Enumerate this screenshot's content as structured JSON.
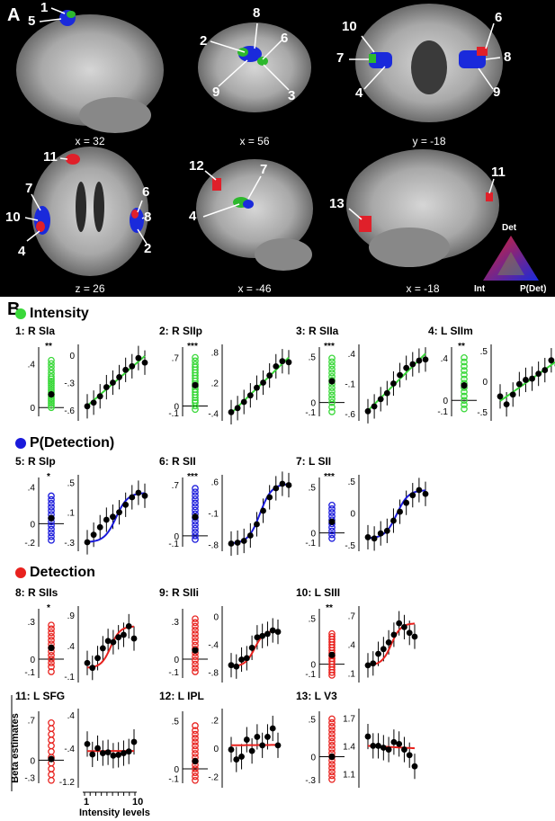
{
  "panel_labels": {
    "a": "A",
    "b": "B"
  },
  "slices": [
    {
      "caption": "x = 32"
    },
    {
      "caption": "x = 56"
    },
    {
      "caption": "y = -18"
    },
    {
      "caption": "z = 26"
    },
    {
      "caption": "x = -46"
    },
    {
      "caption": "x = -18"
    }
  ],
  "region_numbers": [
    "1",
    "5",
    "8",
    "2",
    "6",
    "9",
    "3",
    "10",
    "7",
    "4",
    "6",
    "8",
    "9",
    "11",
    "7",
    "10",
    "4",
    "6",
    "8",
    "2",
    "12",
    "7",
    "4",
    "13",
    "11"
  ],
  "triangle_legend": {
    "top": "Det",
    "left": "Int",
    "right": "P(Det)",
    "colors": {
      "top": "#e0202a",
      "left": "#2db82d",
      "right": "#1a2adb"
    }
  },
  "sections": [
    {
      "title": "Intensity",
      "color": "#39d839"
    },
    {
      "title": "P(Detection)",
      "color": "#1a1adb"
    },
    {
      "title": "Detection",
      "color": "#e8221e"
    }
  ],
  "shared": {
    "ylabel": "Beta estimates",
    "xlabel": "Intensity levels",
    "xtick_min": "1",
    "xtick_max": "10"
  },
  "chart_data": [
    {
      "type": "scatter",
      "title": "1: R SIa",
      "color": "#39d839",
      "stars": "**",
      "left_ticks": [
        ".4",
        "0"
      ],
      "left_lim": [
        -0.08,
        0.55
      ],
      "left_ylim_note": "",
      "right_ticks": [
        "0",
        "-.3",
        "-.6"
      ],
      "right_lim": [
        -0.72,
        0.12
      ],
      "fit": "linear",
      "values": [
        -0.56,
        -0.52,
        -0.45,
        -0.35,
        -0.3,
        -0.24,
        -0.16,
        -0.12,
        -0.03,
        -0.08
      ],
      "subjects": [
        0.02,
        0.04,
        0.06,
        0.08,
        0.1,
        0.12,
        0.14,
        0.16,
        0.18,
        0.2,
        0.22,
        0.24,
        0.26,
        0.28,
        0.31,
        0.34,
        0.37,
        0.4,
        0.43,
        0.0
      ],
      "mean": 0.12
    },
    {
      "type": "scatter",
      "title": "2: R SIIp",
      "color": "#39d839",
      "stars": "***",
      "left_ticks": [
        ".7",
        "0",
        "-.1"
      ],
      "left_lim": [
        -0.15,
        0.85
      ],
      "right_ticks": [
        ".8",
        ".2",
        "-.4"
      ],
      "right_lim": [
        -0.55,
        0.95
      ],
      "fit": "linear",
      "values": [
        -0.38,
        -0.3,
        -0.18,
        -0.05,
        0.1,
        0.2,
        0.34,
        0.52,
        0.62,
        0.6
      ],
      "subjects": [
        -0.05,
        0.0,
        0.05,
        0.08,
        0.12,
        0.16,
        0.2,
        0.24,
        0.28,
        0.32,
        0.36,
        0.4,
        0.44,
        0.48,
        0.52,
        0.56,
        0.6,
        0.65,
        0.7
      ],
      "mean": 0.3
    },
    {
      "type": "scatter",
      "title": "3: R SIIa",
      "color": "#39d839",
      "stars": "***",
      "left_ticks": [
        ".5",
        "0",
        "-.1"
      ],
      "left_lim": [
        -0.15,
        0.6
      ],
      "right_ticks": [
        ".4",
        "-.1",
        "-.6"
      ],
      "right_lim": [
        -0.72,
        0.55
      ],
      "fit": "linear",
      "values": [
        -0.56,
        -0.48,
        -0.36,
        -0.26,
        -0.1,
        0.04,
        0.16,
        0.22,
        0.28,
        0.3
      ],
      "subjects": [
        -0.1,
        -0.05,
        0.0,
        0.04,
        0.08,
        0.12,
        0.16,
        0.2,
        0.24,
        0.28,
        0.32,
        0.36,
        0.4,
        0.44,
        0.48
      ],
      "mean": 0.23
    },
    {
      "type": "scatter",
      "title": "4: L SIIm",
      "color": "#39d839",
      "stars": "**",
      "left_ticks": [
        ".4",
        "0",
        "-.1"
      ],
      "left_lim": [
        -0.15,
        0.5
      ],
      "right_ticks": [
        ".5",
        "0",
        "-.5"
      ],
      "right_lim": [
        -0.65,
        0.6
      ],
      "fit": "linear",
      "values": [
        -0.25,
        -0.38,
        -0.22,
        -0.05,
        0.02,
        0.04,
        0.12,
        0.18,
        0.34,
        0.26
      ],
      "subjects": [
        -0.08,
        -0.04,
        0.0,
        0.04,
        0.08,
        0.12,
        0.16,
        0.2,
        0.24,
        0.28,
        0.32,
        0.36,
        0.4
      ],
      "mean": 0.14
    },
    {
      "type": "scatter",
      "title": "5: R SIp",
      "color": "#1a1adb",
      "stars": "*",
      "left_ticks": [
        ".4",
        "0",
        "-.2"
      ],
      "left_lim": [
        -0.25,
        0.5
      ],
      "right_ticks": [
        ".5",
        ".1",
        "-.3"
      ],
      "right_lim": [
        -0.42,
        0.6
      ],
      "fit": "sigmoid",
      "values": [
        -0.3,
        -0.2,
        -0.1,
        0.0,
        0.04,
        0.1,
        0.2,
        0.3,
        0.36,
        0.32
      ],
      "subjects": [
        -0.18,
        -0.14,
        -0.1,
        -0.06,
        -0.02,
        0.02,
        0.06,
        0.1,
        0.14,
        0.18,
        0.22,
        0.26,
        0.3
      ],
      "mean": 0.06
    },
    {
      "type": "scatter",
      "title": "6: R SII",
      "color": "#1a1adb",
      "stars": "***",
      "left_ticks": [
        ".7",
        "0",
        "-.1"
      ],
      "left_lim": [
        -0.15,
        0.8
      ],
      "right_ticks": [
        ".6",
        "-.1",
        "-.8"
      ],
      "right_lim": [
        -0.95,
        0.75
      ],
      "fit": "sigmoid",
      "values": [
        -0.78,
        -0.76,
        -0.72,
        -0.6,
        -0.35,
        -0.05,
        0.25,
        0.45,
        0.55,
        0.52
      ],
      "subjects": [
        -0.05,
        0.0,
        0.05,
        0.1,
        0.15,
        0.2,
        0.25,
        0.3,
        0.35,
        0.4,
        0.45,
        0.5,
        0.55,
        0.6,
        0.65
      ],
      "mean": 0.26
    },
    {
      "type": "scatter",
      "title": "7: L SII",
      "color": "#1a1adb",
      "stars": "***",
      "left_ticks": [
        ".5",
        "0",
        "-.1"
      ],
      "left_lim": [
        -0.15,
        0.6
      ],
      "right_ticks": [
        ".5",
        "0",
        "-.5"
      ],
      "right_lim": [
        -0.6,
        0.6
      ],
      "fit": "sigmoid",
      "values": [
        -0.38,
        -0.4,
        -0.32,
        -0.28,
        -0.12,
        0.02,
        0.16,
        0.28,
        0.36,
        0.3
      ],
      "subjects": [
        -0.06,
        -0.02,
        0.02,
        0.06,
        0.1,
        0.14,
        0.18,
        0.22,
        0.26,
        0.3
      ],
      "mean": 0.12
    },
    {
      "type": "scatter",
      "title": "8: R SIIs",
      "color": "#e8221e",
      "stars": "*",
      "left_ticks": [
        ".3",
        "0",
        "-.1"
      ],
      "left_lim": [
        -0.15,
        0.4
      ],
      "right_ticks": [
        ".9",
        ".4",
        "-.1"
      ],
      "right_lim": [
        -0.2,
        1.05
      ],
      "fit": "sigmoid",
      "values": [
        0.12,
        0.04,
        0.2,
        0.36,
        0.48,
        0.46,
        0.54,
        0.58,
        0.72,
        0.52
      ],
      "subjects": [
        -0.1,
        -0.06,
        -0.03,
        0.0,
        0.03,
        0.06,
        0.09,
        0.12,
        0.15,
        0.18,
        0.21,
        0.24,
        0.27
      ],
      "mean": 0.09
    },
    {
      "type": "scatter",
      "title": "9: R SIIi",
      "color": "#e8221e",
      "stars": "",
      "left_ticks": [
        ".3",
        "0",
        "-.1"
      ],
      "left_lim": [
        -0.15,
        0.4
      ],
      "right_ticks": [
        "0",
        "-.4",
        "-.8"
      ],
      "right_lim": [
        -0.95,
        0.15
      ],
      "fit": "sigmoid",
      "values": [
        -0.7,
        -0.72,
        -0.62,
        -0.6,
        -0.45,
        -0.3,
        -0.28,
        -0.25,
        -0.2,
        -0.22
      ],
      "subjects": [
        -0.1,
        -0.07,
        -0.04,
        -0.01,
        0.02,
        0.05,
        0.08,
        0.11,
        0.14,
        0.17,
        0.2,
        0.23,
        0.26,
        0.29,
        0.32
      ],
      "mean": 0.07
    },
    {
      "type": "scatter",
      "title": "10: L SIII",
      "color": "#e8221e",
      "stars": "**",
      "left_ticks": [
        ".5",
        "0",
        "-.1"
      ],
      "left_lim": [
        -0.15,
        0.6
      ],
      "right_ticks": [
        ".7",
        ".4",
        ".1"
      ],
      "right_lim": [
        0.0,
        0.8
      ],
      "fit": "sigmoid",
      "values": [
        0.18,
        0.2,
        0.3,
        0.35,
        0.42,
        0.5,
        0.62,
        0.58,
        0.52,
        0.48
      ],
      "subjects": [
        -0.12,
        -0.09,
        -0.06,
        -0.03,
        0.0,
        0.03,
        0.06,
        0.09,
        0.12,
        0.15,
        0.18,
        0.21,
        0.24,
        0.27,
        0.3,
        0.33
      ],
      "mean": 0.1
    },
    {
      "type": "scatter",
      "title": "11: L SFG",
      "color": "#e8221e",
      "stars": "",
      "left_ticks": [
        ".7",
        "0",
        "-.3"
      ],
      "left_lim": [
        -0.4,
        0.85
      ],
      "right_ticks": [
        ".4",
        "-.4",
        "-1.2"
      ],
      "right_lim": [
        -1.35,
        0.55
      ],
      "fit": "flat",
      "values": [
        -0.3,
        -0.55,
        -0.4,
        -0.52,
        -0.5,
        -0.58,
        -0.56,
        -0.52,
        -0.48,
        -0.25
      ],
      "subjects": [
        -0.35,
        -0.25,
        -0.15,
        -0.05,
        0.05,
        0.15,
        0.25,
        0.35,
        0.45,
        0.55,
        0.65
      ],
      "mean": 0.02
    },
    {
      "type": "scatter",
      "title": "12: L IPL",
      "color": "#e8221e",
      "stars": "",
      "left_ticks": [
        ".5",
        "0",
        "-.1"
      ],
      "left_lim": [
        -0.15,
        0.6
      ],
      "right_ticks": [
        ".2",
        "0",
        "-.2"
      ],
      "right_lim": [
        -0.28,
        0.28
      ],
      "fit": "flat",
      "values": [
        -0.01,
        -0.08,
        -0.06,
        0.06,
        -0.02,
        0.08,
        0.02,
        0.08,
        0.14,
        0.02
      ],
      "subjects": [
        -0.12,
        -0.08,
        -0.04,
        0.0,
        0.04,
        0.08,
        0.12,
        0.16,
        0.2,
        0.24,
        0.28,
        0.32,
        0.36,
        0.4,
        0.45
      ],
      "mean": 0.08
    },
    {
      "type": "scatter",
      "title": "13: L V3",
      "color": "#e8221e",
      "stars": "",
      "left_ticks": [
        ".5",
        "0",
        "-.3"
      ],
      "left_lim": [
        -0.35,
        0.6
      ],
      "right_ticks": [
        "1.7",
        "1.4",
        "1.1"
      ],
      "right_lim": [
        0.95,
        1.8
      ],
      "fit": "flat",
      "values": [
        1.5,
        1.4,
        1.4,
        1.38,
        1.36,
        1.44,
        1.42,
        1.36,
        1.3,
        1.18
      ],
      "subjects": [
        -0.3,
        -0.25,
        -0.2,
        -0.15,
        -0.1,
        -0.05,
        0.0,
        0.05,
        0.1,
        0.15,
        0.2,
        0.25,
        0.3,
        0.35,
        0.4,
        0.45,
        0.5
      ],
      "mean": 0.0
    }
  ]
}
